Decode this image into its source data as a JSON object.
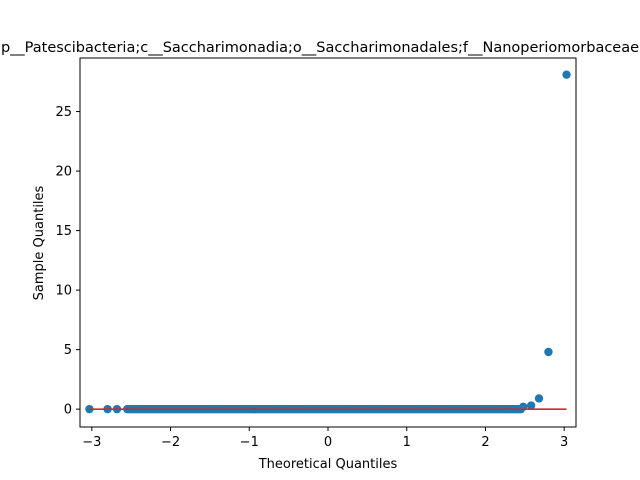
{
  "chart_data": {
    "type": "scatter",
    "title": "p__Patescibacteria;c__Saccharimonadia;o__Saccharimonadales;f__Nanoperiomorbaceae",
    "xlabel": "Theoretical Quantiles",
    "ylabel": "Sample Quantiles",
    "xlim": [
      -3.15,
      3.15
    ],
    "ylim": [
      -1.5,
      29.5
    ],
    "xticks": [
      -3,
      -2,
      -1,
      0,
      1,
      2,
      3
    ],
    "yticks": [
      0,
      5,
      10,
      15,
      20,
      25
    ],
    "grid": false,
    "marker_color": "#1f77b4",
    "line_color": "#d62728",
    "reference_line": {
      "x": [
        -3.03,
        3.03
      ],
      "y": [
        0,
        0
      ]
    },
    "dense_band": {
      "x_from": -2.55,
      "x_to": 2.45,
      "count": 230,
      "y": 0
    },
    "points": [
      {
        "x": -3.03,
        "y": 0
      },
      {
        "x": -2.8,
        "y": 0
      },
      {
        "x": -2.68,
        "y": 0
      },
      {
        "x": 2.48,
        "y": 0.2
      },
      {
        "x": 2.58,
        "y": 0.3
      },
      {
        "x": 2.68,
        "y": 0.9
      },
      {
        "x": 2.8,
        "y": 4.8
      },
      {
        "x": 3.03,
        "y": 28.1
      }
    ]
  }
}
